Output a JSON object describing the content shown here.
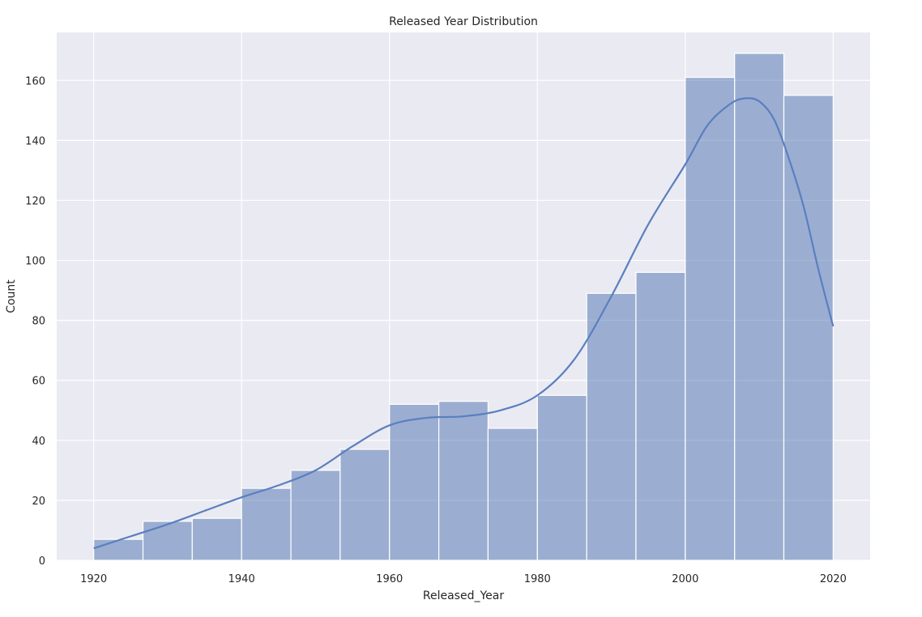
{
  "chart_data": {
    "type": "bar",
    "title": "Released Year Distribution",
    "xlabel": "Released_Year",
    "ylabel": "Count",
    "xlim": [
      1915,
      2025
    ],
    "ylim": [
      0,
      176
    ],
    "xticks": [
      1920,
      1940,
      1960,
      1980,
      2000,
      2020
    ],
    "yticks": [
      0,
      20,
      40,
      60,
      80,
      100,
      120,
      140,
      160
    ],
    "grid": true,
    "bins": [
      {
        "start": 1920.0,
        "end": 1926.67,
        "count": 7
      },
      {
        "start": 1926.67,
        "end": 1933.33,
        "count": 13
      },
      {
        "start": 1933.33,
        "end": 1940.0,
        "count": 14
      },
      {
        "start": 1940.0,
        "end": 1946.67,
        "count": 24
      },
      {
        "start": 1946.67,
        "end": 1953.33,
        "count": 30
      },
      {
        "start": 1953.33,
        "end": 1960.0,
        "count": 37
      },
      {
        "start": 1960.0,
        "end": 1966.67,
        "count": 52
      },
      {
        "start": 1966.67,
        "end": 1973.33,
        "count": 53
      },
      {
        "start": 1973.33,
        "end": 1980.0,
        "count": 44
      },
      {
        "start": 1980.0,
        "end": 1986.67,
        "count": 55
      },
      {
        "start": 1986.67,
        "end": 1993.33,
        "count": 89
      },
      {
        "start": 1993.33,
        "end": 2000.0,
        "count": 96
      },
      {
        "start": 2000.0,
        "end": 2006.67,
        "count": 161
      },
      {
        "start": 2006.67,
        "end": 2013.33,
        "count": 169
      },
      {
        "start": 2013.33,
        "end": 2020.0,
        "count": 155
      }
    ],
    "kde": {
      "x": [
        1920,
        1925,
        1930,
        1935,
        1940,
        1945,
        1950,
        1955,
        1960,
        1965,
        1970,
        1975,
        1980,
        1985,
        1990,
        1995,
        2000,
        2003,
        2006,
        2008,
        2010,
        2012,
        2014,
        2016,
        2018,
        2020
      ],
      "y": [
        4,
        8,
        12,
        16.5,
        21,
        25,
        30,
        38,
        45,
        47.5,
        48,
        50,
        55,
        67,
        88,
        112,
        132,
        145,
        152,
        154,
        153,
        147,
        134,
        118,
        97,
        78
      ]
    },
    "colors": {
      "background": "#eaeaf2",
      "grid": "#ffffff",
      "bar_fill": "#4c72b0",
      "bar_opacity": 0.5,
      "line": "#5a7fbf"
    }
  }
}
